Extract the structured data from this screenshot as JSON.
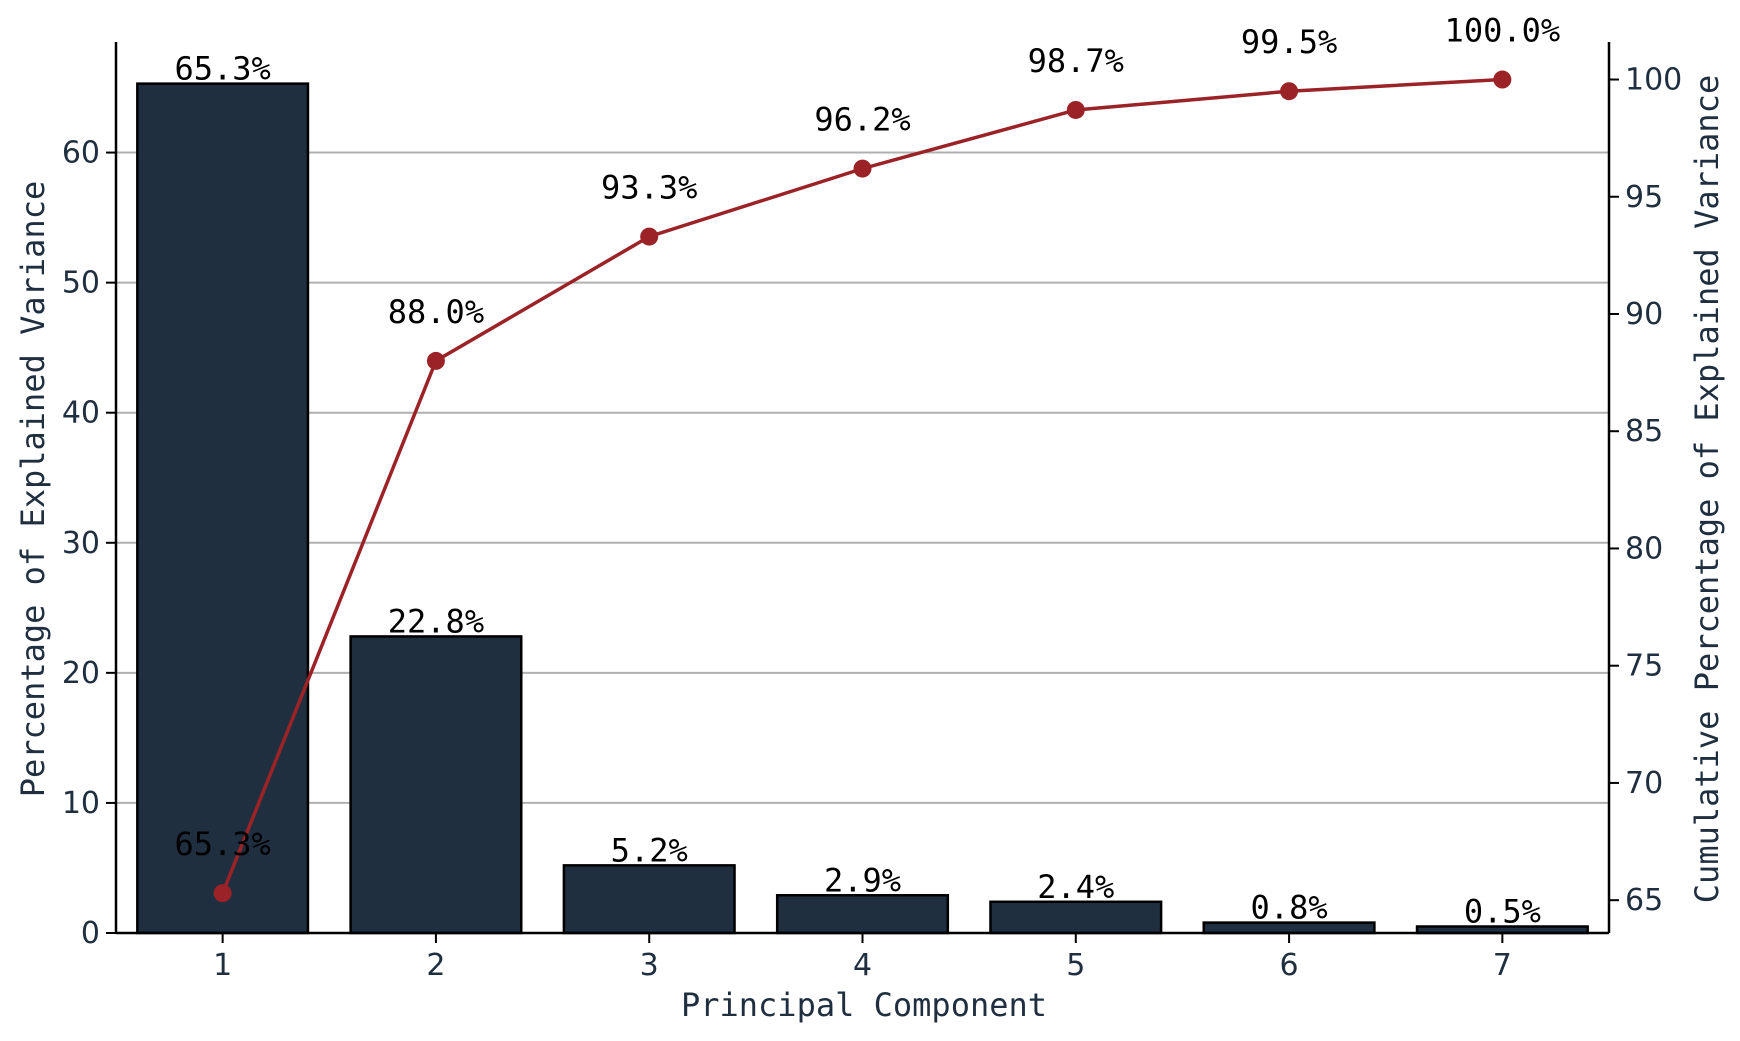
{
  "chart_data": {
    "type": "bar",
    "categories": [
      "1",
      "2",
      "3",
      "4",
      "5",
      "6",
      "7"
    ],
    "series": [
      {
        "type": "bar",
        "axis": "left",
        "values": [
          65.3,
          22.8,
          5.2,
          2.9,
          2.4,
          0.8,
          0.5
        ],
        "labels": [
          "65.3%",
          "22.8%",
          "5.2%",
          "2.9%",
          "2.4%",
          "0.8%",
          "0.5%"
        ]
      },
      {
        "type": "line",
        "axis": "right",
        "values": [
          65.3,
          88.0,
          93.3,
          96.2,
          98.7,
          99.5,
          100.0
        ],
        "labels": [
          "65.3%",
          "88.0%",
          "93.3%",
          "96.2%",
          "98.7%",
          "99.5%",
          "100.0%"
        ]
      }
    ],
    "xlabel": "Principal Component",
    "ylabel": "Percentage of Explained Variance",
    "y2label": "Cumulative Percentage of Explained Variance",
    "ylim": [
      0,
      68.5
    ],
    "y2lim": [
      63.6,
      101.6
    ],
    "yticks": [
      0,
      10,
      20,
      30,
      40,
      50,
      60
    ],
    "y2ticks": [
      65,
      70,
      75,
      80,
      85,
      90,
      95,
      100
    ],
    "grid": "horizontal",
    "colors": {
      "bar_fill": "#1f2f40",
      "bar_edge": "#000000",
      "line": "#9b2226",
      "grid": "#b0b0b0",
      "axis_text": "#1f2f40"
    }
  }
}
